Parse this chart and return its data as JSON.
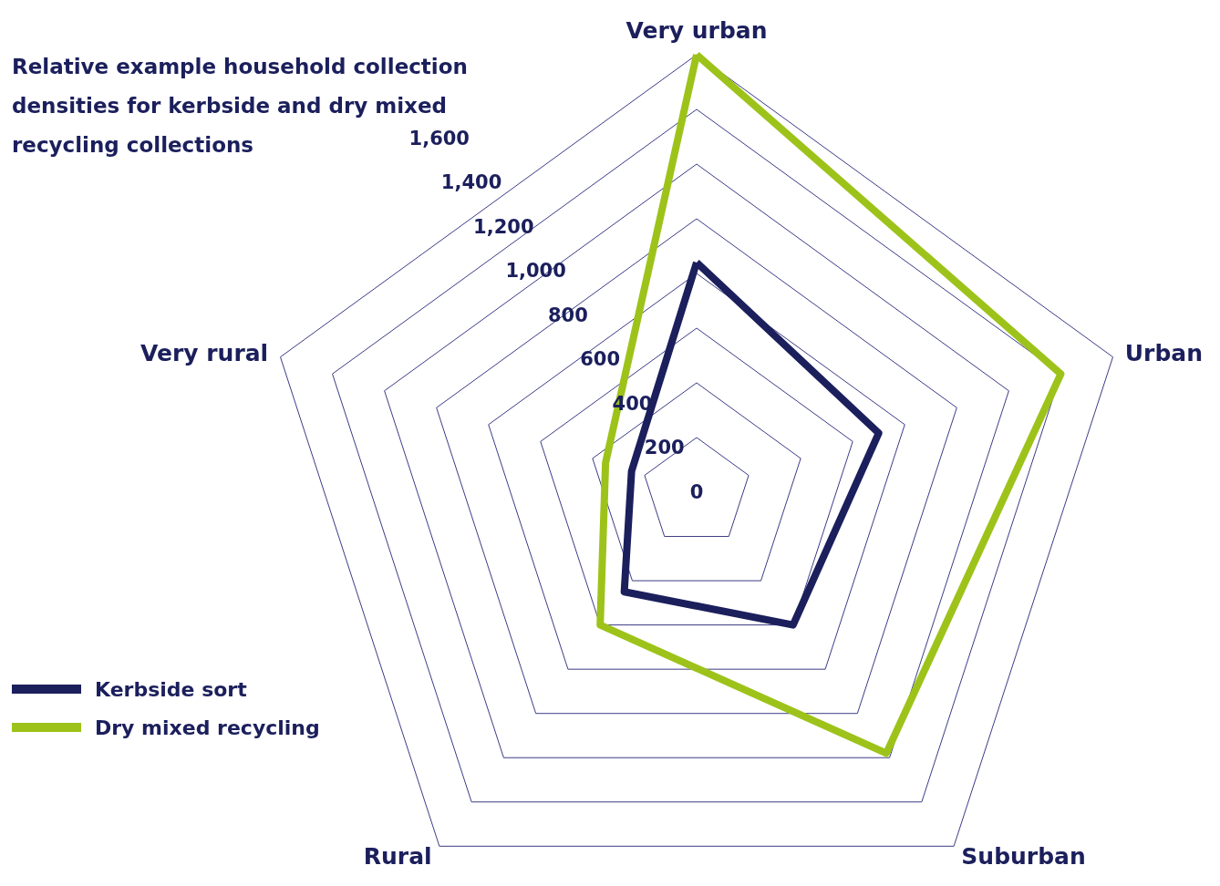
{
  "chart_data": {
    "type": "radar",
    "title": "Relative example household collection densities for kerbside and dry mixed recycling collections",
    "categories": [
      "Very urban",
      "Urban",
      "Suburban",
      "Rural",
      "Very rural"
    ],
    "ylim": [
      0,
      1600
    ],
    "yticks": [
      {
        "value": 0,
        "label": "0"
      },
      {
        "value": 200,
        "label": "200"
      },
      {
        "value": 400,
        "label": "400"
      },
      {
        "value": 600,
        "label": "600"
      },
      {
        "value": 800,
        "label": "800"
      },
      {
        "value": 1000,
        "label": "1,000"
      },
      {
        "value": 1200,
        "label": "1,200"
      },
      {
        "value": 1400,
        "label": "1,400"
      },
      {
        "value": 1600,
        "label": "1,600"
      }
    ],
    "series": [
      {
        "name": "Kerbside sort",
        "color": "#1b1f5c",
        "values": [
          840,
          700,
          600,
          450,
          250
        ]
      },
      {
        "name": "Dry mixed recycling",
        "color": "#9dc31a",
        "values": [
          1600,
          1400,
          1180,
          600,
          350
        ]
      }
    ],
    "legend": "bottom left",
    "grid": true
  }
}
